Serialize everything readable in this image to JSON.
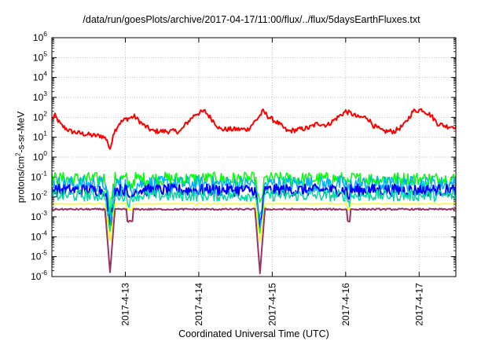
{
  "chart_data": {
    "type": "line",
    "title": "/data/run/goesPlots/archive/2017-04-17/11:00/flux/../flux/5daysEarthFluxes.txt",
    "xlabel": "Coordinated Universal Time (UTC)",
    "ylabel": {
      "pre": "protons/cm",
      "sup": "2",
      "post": "-s-sr-MeV"
    },
    "y_scale": "log",
    "ylim_exp": [
      -6,
      6
    ],
    "y_ticks": [
      {
        "base": "10",
        "exp": "-6"
      },
      {
        "base": "10",
        "exp": "-5"
      },
      {
        "base": "10",
        "exp": "-4"
      },
      {
        "base": "10",
        "exp": "-3"
      },
      {
        "base": "10",
        "exp": "-2"
      },
      {
        "base": "10",
        "exp": "-1"
      },
      {
        "base": "10",
        "exp": "0"
      },
      {
        "base": "10",
        "exp": "1"
      },
      {
        "base": "10",
        "exp": "2"
      },
      {
        "base": "10",
        "exp": "3"
      },
      {
        "base": "10",
        "exp": "4"
      },
      {
        "base": "10",
        "exp": "5"
      },
      {
        "base": "10",
        "exp": "6"
      }
    ],
    "x_range": [
      "2017-04-12T00:00",
      "2017-04-17T12:00"
    ],
    "x_ticks": [
      {
        "date": "2017-04-13T00:00",
        "label": "2017-4-13"
      },
      {
        "date": "2017-04-14T00:00",
        "label": "2017-4-14"
      },
      {
        "date": "2017-04-15T00:00",
        "label": "2017-4-15"
      },
      {
        "date": "2017-04-16T00:00",
        "label": "2017-4-16"
      },
      {
        "date": "2017-04-17T00:00",
        "label": "2017-4-17"
      }
    ],
    "grid": true,
    "legend": "none",
    "series": [
      {
        "color": "#ff0000",
        "width": 2,
        "points": [
          [
            "2017-04-12T00:00",
            80
          ],
          [
            "2017-04-12T01:00",
            120
          ],
          [
            "2017-04-12T03:00",
            40
          ],
          [
            "2017-04-12T06:00",
            20
          ],
          [
            "2017-04-12T10:00",
            15
          ],
          [
            "2017-04-12T14:00",
            12
          ],
          [
            "2017-04-12T16:00",
            12
          ],
          [
            "2017-04-12T18:00",
            8
          ],
          [
            "2017-04-12T19:00",
            2
          ],
          [
            "2017-04-12T20:00",
            15
          ],
          [
            "2017-04-12T22:00",
            50
          ],
          [
            "2017-04-13T00:00",
            80
          ],
          [
            "2017-04-13T03:00",
            110
          ],
          [
            "2017-04-13T06:00",
            40
          ],
          [
            "2017-04-13T09:00",
            20
          ],
          [
            "2017-04-13T14:00",
            20
          ],
          [
            "2017-04-13T18:00",
            20
          ],
          [
            "2017-04-13T20:00",
            50
          ],
          [
            "2017-04-13T23:00",
            150
          ],
          [
            "2017-04-14T02:00",
            200
          ],
          [
            "2017-04-14T05:00",
            60
          ],
          [
            "2017-04-14T07:00",
            25
          ],
          [
            "2017-04-14T12:00",
            25
          ],
          [
            "2017-04-14T16:00",
            25
          ],
          [
            "2017-04-14T19:00",
            80
          ],
          [
            "2017-04-14T21:00",
            200
          ],
          [
            "2017-04-14T23:00",
            100
          ],
          [
            "2017-04-15T02:00",
            50
          ],
          [
            "2017-04-15T05:00",
            20
          ],
          [
            "2017-04-15T09:00",
            25
          ],
          [
            "2017-04-15T12:00",
            30
          ],
          [
            "2017-04-15T15:00",
            50
          ],
          [
            "2017-04-15T18:00",
            40
          ],
          [
            "2017-04-15T21:00",
            90
          ],
          [
            "2017-04-16T00:00",
            200
          ],
          [
            "2017-04-16T02:00",
            150
          ],
          [
            "2017-04-16T04:00",
            100
          ],
          [
            "2017-04-16T07:00",
            100
          ],
          [
            "2017-04-16T09:00",
            40
          ],
          [
            "2017-04-16T12:00",
            20
          ],
          [
            "2017-04-16T16:00",
            20
          ],
          [
            "2017-04-16T19:00",
            40
          ],
          [
            "2017-04-16T22:00",
            200
          ],
          [
            "2017-04-17T01:00",
            250
          ],
          [
            "2017-04-17T04:00",
            120
          ],
          [
            "2017-04-17T06:00",
            50
          ],
          [
            "2017-04-17T09:00",
            35
          ],
          [
            "2017-04-17T12:00",
            35
          ]
        ]
      },
      {
        "color": "#00ff00",
        "width": 1.5,
        "baseline": 0.08,
        "noise": 0.35,
        "dip": 0.003
      },
      {
        "color": "#00b0ff",
        "width": 1.5,
        "baseline": 0.045,
        "noise": 0.4,
        "dip": 0.0006
      },
      {
        "color": "#0000ff",
        "width": 2,
        "baseline": 0.022,
        "noise": 0.3,
        "dip": 0.0003
      },
      {
        "color": "#00d8a0",
        "width": 1.5,
        "baseline": 0.012,
        "noise": 0.3,
        "dip": 0.0002
      },
      {
        "color": "#ffff00",
        "width": 1.5,
        "baseline": 0.0045,
        "noise": 0.02,
        "dip": 6e-05
      },
      {
        "color": "#993366",
        "width": 2,
        "baseline": 0.0024,
        "noise": 0.04,
        "dip": 1.5e-06
      }
    ],
    "dips": [
      "2017-04-12T19:00",
      "2017-04-14T20:00"
    ],
    "minor_dips": [
      "2017-04-13T01:00",
      "2017-04-13T02:00",
      "2017-04-16T01:00"
    ]
  }
}
